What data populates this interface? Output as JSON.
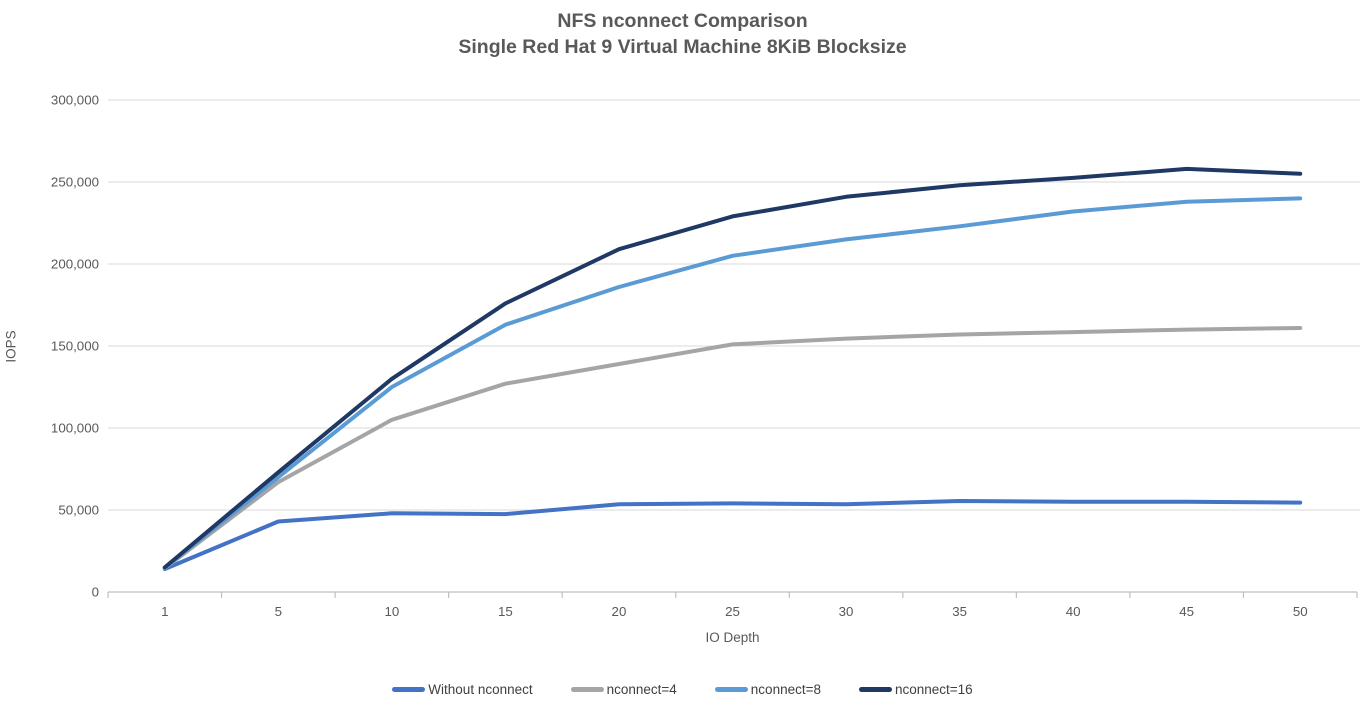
{
  "chart_data": {
    "type": "line",
    "title": "NFS nconnect Comparison",
    "subtitle": "Single Red Hat 9 Virtual Machine 8KiB Blocksize",
    "xlabel": "IO Depth",
    "ylabel": "IOPS",
    "categories": [
      "1",
      "5",
      "10",
      "15",
      "20",
      "25",
      "30",
      "35",
      "40",
      "45",
      "50"
    ],
    "y_axis": {
      "min": 0,
      "max": 300000,
      "step": 50000,
      "tick_labels": [
        "0",
        "50,000",
        "100,000",
        "150,000",
        "200,000",
        "250,000",
        "300,000"
      ]
    },
    "grid": true,
    "legend_position": "bottom",
    "series": [
      {
        "name": "Without nconnect",
        "color": "#4472C4",
        "values": [
          14000,
          43000,
          48000,
          47500,
          53500,
          54000,
          53500,
          55500,
          55000,
          55000,
          54500
        ]
      },
      {
        "name": "nconnect=4",
        "color": "#A5A5A5",
        "values": [
          14500,
          67000,
          105000,
          127000,
          139000,
          151000,
          154500,
          157000,
          158500,
          160000,
          161000
        ]
      },
      {
        "name": "nconnect=8",
        "color": "#5B9BD5",
        "values": [
          14800,
          70000,
          125000,
          163000,
          186000,
          205000,
          215000,
          223000,
          232000,
          238000,
          240000
        ]
      },
      {
        "name": "nconnect=16",
        "color": "#1F3864",
        "values": [
          15000,
          73000,
          130000,
          176000,
          209000,
          229000,
          241000,
          248000,
          252500,
          258000,
          255000
        ]
      }
    ]
  },
  "colors": {
    "background": "#FFFFFF",
    "gridline": "#D9D9D9",
    "axis_line": "#BFBFBF",
    "axis_text": "#595959",
    "title_text": "#595959",
    "legend_text": "#3F3F3F"
  }
}
